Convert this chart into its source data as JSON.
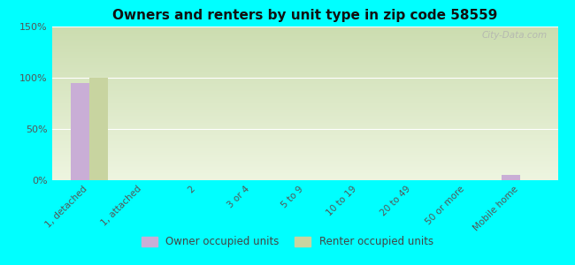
{
  "title": "Owners and renters by unit type in zip code 58559",
  "categories": [
    "1, detached",
    "1, attached",
    "2",
    "3 or 4",
    "5 to 9",
    "10 to 19",
    "20 to 49",
    "50 or more",
    "Mobile home"
  ],
  "owner_values": [
    95,
    0,
    0,
    0,
    0,
    0,
    0,
    0,
    5
  ],
  "renter_values": [
    100,
    0,
    0,
    0,
    0,
    0,
    0,
    0,
    0
  ],
  "owner_color": "#c9aed6",
  "renter_color": "#c8d4a0",
  "background_color": "#00ffff",
  "plot_bg_gradient_top": "#ccddb0",
  "plot_bg_gradient_bottom": "#eef5e0",
  "ylim": [
    0,
    150
  ],
  "yticks": [
    0,
    50,
    100,
    150
  ],
  "ytick_labels": [
    "0%",
    "50%",
    "100%",
    "150%"
  ],
  "watermark": "City-Data.com",
  "legend_owner": "Owner occupied units",
  "legend_renter": "Renter occupied units",
  "bar_width": 0.35
}
